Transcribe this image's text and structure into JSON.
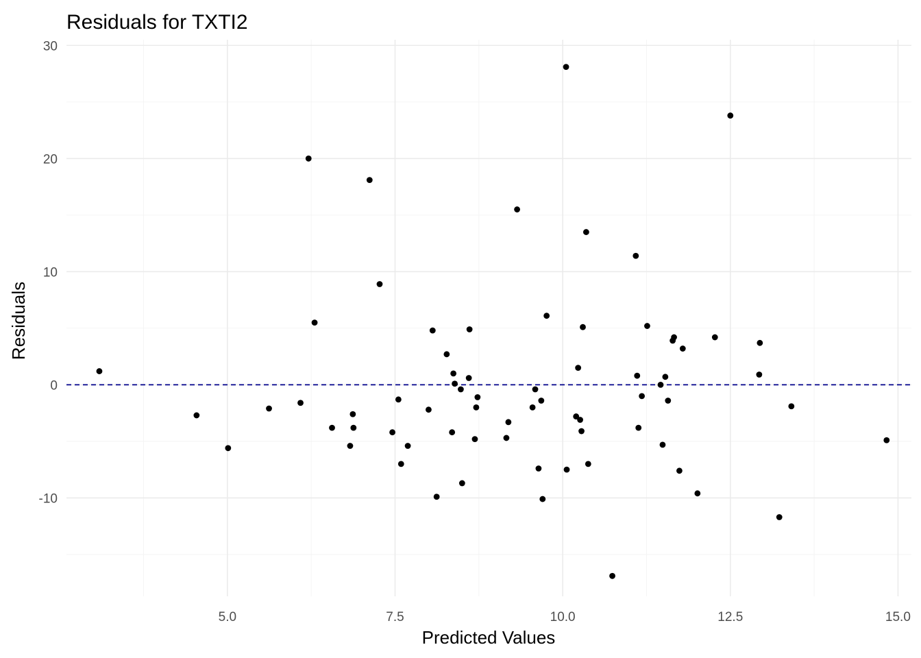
{
  "chart_data": {
    "type": "scatter",
    "title": "Residuals for TXTI2",
    "xlabel": "Predicted Values",
    "ylabel": "Residuals",
    "xlim": [
      2.6,
      15.2
    ],
    "ylim": [
      -18.7,
      30.5
    ],
    "x_ticks": [
      5.0,
      7.5,
      10.0,
      12.5,
      15.0
    ],
    "x_tick_labels": [
      "5.0",
      "7.5",
      "10.0",
      "12.5",
      "15.0"
    ],
    "y_ticks": [
      -10,
      0,
      10,
      20,
      30
    ],
    "y_tick_labels": [
      "-10",
      "0",
      "10",
      "20",
      "30"
    ],
    "grid": true,
    "reference_line": {
      "y": 0,
      "style": "dashed",
      "color": "#00008b"
    },
    "point_color": "#000000",
    "points": [
      {
        "x": 3.09,
        "y": 1.2
      },
      {
        "x": 4.54,
        "y": -2.7
      },
      {
        "x": 5.01,
        "y": -5.6
      },
      {
        "x": 5.62,
        "y": -2.1
      },
      {
        "x": 6.09,
        "y": -1.6
      },
      {
        "x": 6.21,
        "y": 20.0
      },
      {
        "x": 6.3,
        "y": 5.5
      },
      {
        "x": 6.56,
        "y": -3.8
      },
      {
        "x": 6.83,
        "y": -5.4
      },
      {
        "x": 6.87,
        "y": -2.6
      },
      {
        "x": 6.88,
        "y": -3.8
      },
      {
        "x": 7.12,
        "y": 18.1
      },
      {
        "x": 7.27,
        "y": 8.9
      },
      {
        "x": 7.46,
        "y": -4.2
      },
      {
        "x": 7.55,
        "y": -1.3
      },
      {
        "x": 7.59,
        "y": -7.0
      },
      {
        "x": 7.69,
        "y": -5.4
      },
      {
        "x": 8.0,
        "y": -2.2
      },
      {
        "x": 8.06,
        "y": 4.8
      },
      {
        "x": 8.12,
        "y": -9.9
      },
      {
        "x": 8.27,
        "y": 2.7
      },
      {
        "x": 8.35,
        "y": -4.2
      },
      {
        "x": 8.37,
        "y": 1.0
      },
      {
        "x": 8.39,
        "y": 0.1
      },
      {
        "x": 8.48,
        "y": -0.4
      },
      {
        "x": 8.5,
        "y": -8.7
      },
      {
        "x": 8.6,
        "y": 0.6
      },
      {
        "x": 8.61,
        "y": 4.9
      },
      {
        "x": 8.69,
        "y": -4.8
      },
      {
        "x": 8.71,
        "y": -2.0
      },
      {
        "x": 8.73,
        "y": -1.1
      },
      {
        "x": 9.16,
        "y": -4.7
      },
      {
        "x": 9.19,
        "y": -3.3
      },
      {
        "x": 9.32,
        "y": 15.5
      },
      {
        "x": 9.55,
        "y": -2.0
      },
      {
        "x": 9.59,
        "y": -0.4
      },
      {
        "x": 9.64,
        "y": -7.4
      },
      {
        "x": 9.68,
        "y": -1.4
      },
      {
        "x": 9.7,
        "y": -10.1
      },
      {
        "x": 9.76,
        "y": 6.1
      },
      {
        "x": 10.05,
        "y": 28.1
      },
      {
        "x": 10.06,
        "y": -7.5
      },
      {
        "x": 10.2,
        "y": -2.8
      },
      {
        "x": 10.23,
        "y": 1.5
      },
      {
        "x": 10.26,
        "y": -3.1
      },
      {
        "x": 10.28,
        "y": -4.1
      },
      {
        "x": 10.3,
        "y": 5.1
      },
      {
        "x": 10.35,
        "y": 13.5
      },
      {
        "x": 10.38,
        "y": -7.0
      },
      {
        "x": 10.74,
        "y": -16.9
      },
      {
        "x": 11.09,
        "y": 11.4
      },
      {
        "x": 11.11,
        "y": 0.8
      },
      {
        "x": 11.13,
        "y": -3.8
      },
      {
        "x": 11.18,
        "y": -1.0
      },
      {
        "x": 11.26,
        "y": 5.2
      },
      {
        "x": 11.46,
        "y": 0.0
      },
      {
        "x": 11.49,
        "y": -5.3
      },
      {
        "x": 11.53,
        "y": 0.7
      },
      {
        "x": 11.57,
        "y": -1.4
      },
      {
        "x": 11.64,
        "y": 3.9
      },
      {
        "x": 11.66,
        "y": 4.2
      },
      {
        "x": 11.74,
        "y": -7.6
      },
      {
        "x": 11.79,
        "y": 3.2
      },
      {
        "x": 12.01,
        "y": -9.6
      },
      {
        "x": 12.27,
        "y": 4.2
      },
      {
        "x": 12.5,
        "y": 23.8
      },
      {
        "x": 12.93,
        "y": 0.9
      },
      {
        "x": 12.94,
        "y": 3.7
      },
      {
        "x": 13.23,
        "y": -11.7
      },
      {
        "x": 13.41,
        "y": -1.9
      },
      {
        "x": 14.83,
        "y": -4.9
      }
    ]
  }
}
